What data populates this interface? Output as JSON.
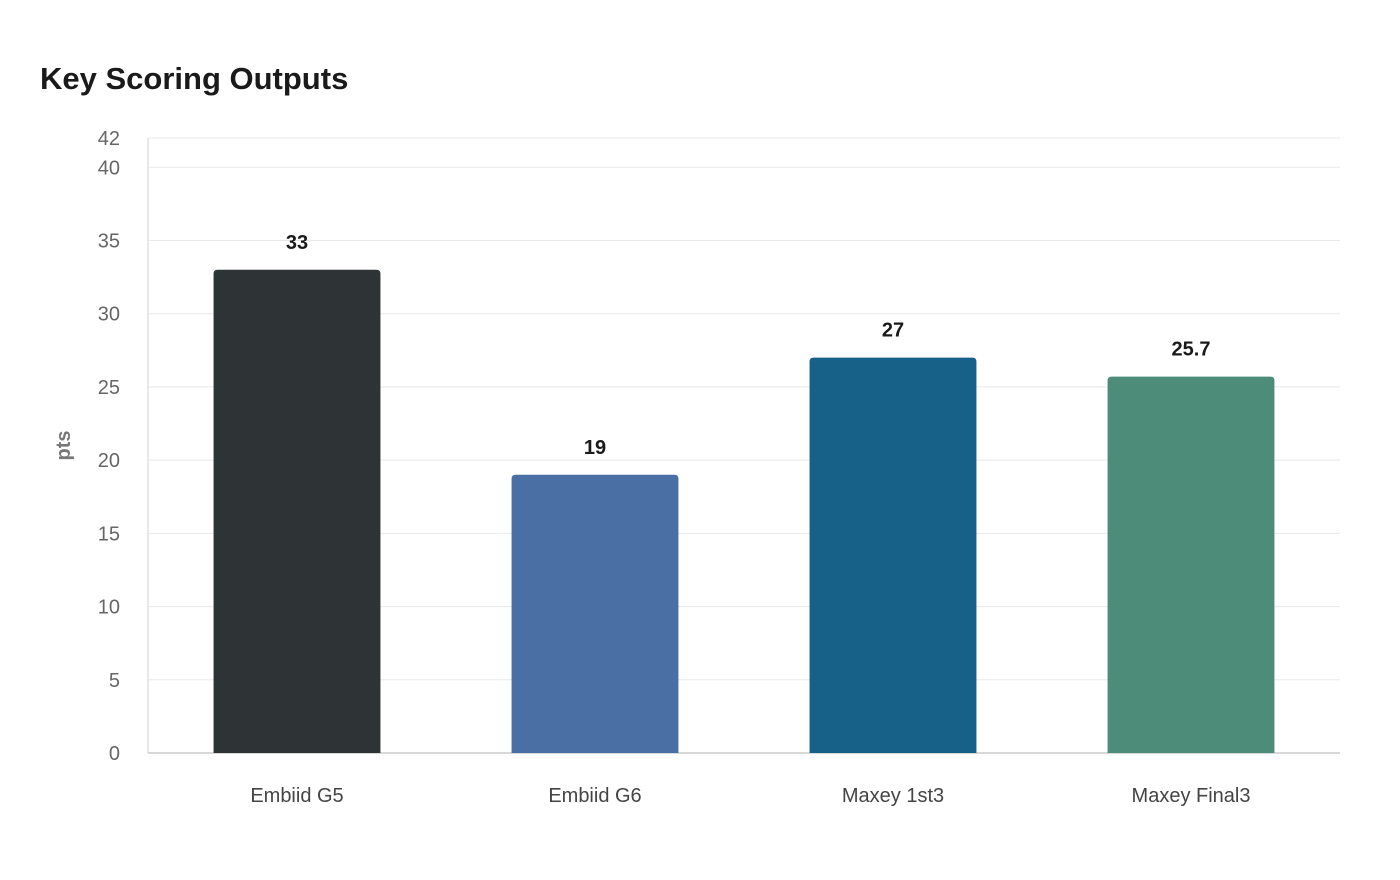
{
  "chart_data": {
    "type": "bar",
    "title": "Key Scoring Outputs",
    "xlabel": "",
    "ylabel": "pts",
    "categories": [
      "Embiid G5",
      "Embiid G6",
      "Maxey 1st3",
      "Maxey Final3"
    ],
    "values": [
      33,
      19,
      27,
      25.7
    ],
    "value_labels": [
      "33",
      "19",
      "27",
      "25.7"
    ],
    "colors": [
      "#2e3436",
      "#4a6fa5",
      "#176087",
      "#4e8c7a"
    ],
    "ylim": [
      0,
      42
    ],
    "yticks": [
      0,
      5,
      10,
      15,
      20,
      25,
      30,
      35,
      40,
      42
    ],
    "grid": true,
    "legend": "none"
  }
}
